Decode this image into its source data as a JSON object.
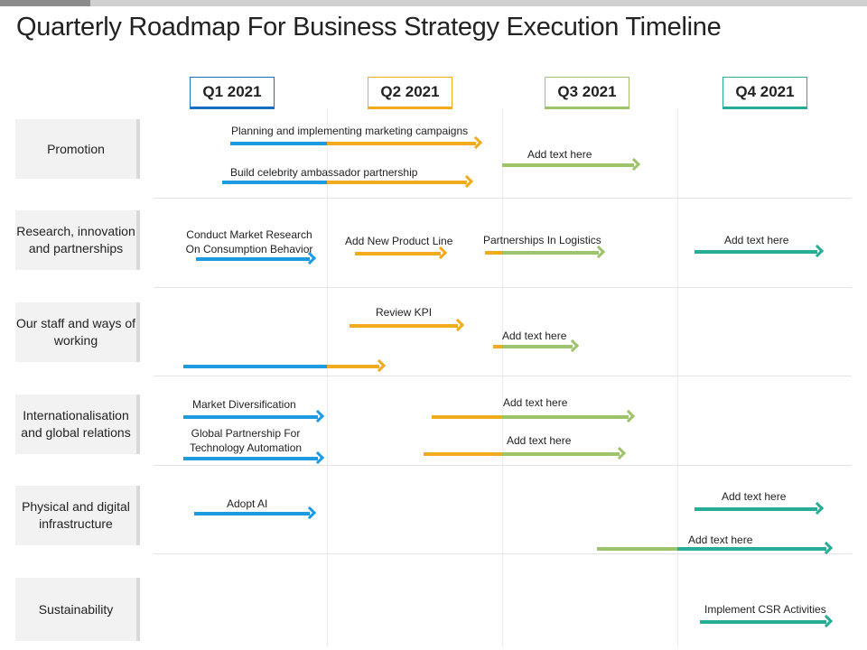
{
  "title": "Quarterly Roadmap For Business Strategy Execution Timeline",
  "colors": {
    "blue": "#1e9be0",
    "orange": "#f0ac1e",
    "lightgreen": "#9dc36b",
    "teal": "#27ad96",
    "headerbar": "#d0d0d0"
  },
  "quarters": [
    "Q1 2021",
    "Q2 2021",
    "Q3 2021",
    "Q4 2021"
  ],
  "quarter_colors": [
    "#1a6fc4",
    "#f0ac1e",
    "#9dc36b",
    "#27ad96"
  ],
  "rows": [
    "Promotion",
    "Research, innovation and partnerships",
    "Our staff and ways of working",
    "Internationalisation and global relations",
    "Physical and digital infrastructure",
    "Sustainability"
  ],
  "tasks": [
    {
      "label": "Planning and implementing marketing campaigns",
      "start": 0.45,
      "end": 1.85,
      "split": 1.0,
      "c1": "blue",
      "c2": "orange"
    },
    {
      "label": "Build celebrity ambassador partnership",
      "start": 0.4,
      "end": 1.8,
      "split": 1.0,
      "c1": "blue",
      "c2": "orange"
    },
    {
      "label": "Add text here",
      "start": 2.0,
      "end": 2.75,
      "c1": "lightgreen"
    },
    {
      "label": "Conduct Market Research On Consumption Behavior",
      "start": 0.25,
      "end": 0.9,
      "c1": "blue"
    },
    {
      "label": "Add New Product Line",
      "start": 1.16,
      "end": 1.65,
      "c1": "orange"
    },
    {
      "label": "Partnerships In Logistics",
      "start": 1.9,
      "end": 2.55,
      "split": 2.0,
      "c1": "orange",
      "c2": "lightgreen"
    },
    {
      "label": "Add text here",
      "start": 3.1,
      "end": 3.8,
      "c1": "teal"
    },
    {
      "label": "Review KPI",
      "start": 1.13,
      "end": 1.75,
      "c1": "orange"
    },
    {
      "label": "Add text here",
      "start": 1.95,
      "end": 2.4,
      "split": 2.0,
      "c1": "orange",
      "c2": "lightgreen"
    },
    {
      "label": "",
      "start": 0.18,
      "end": 1.3,
      "split": 1.0,
      "c1": "blue",
      "c2": "orange"
    },
    {
      "label": "Market Diversification",
      "start": 0.18,
      "end": 0.95,
      "c1": "blue"
    },
    {
      "label": "Add text here",
      "start": 1.6,
      "end": 2.72,
      "split": 2.0,
      "c1": "orange",
      "c2": "lightgreen"
    },
    {
      "label": "Global Partnership For Technology Automation",
      "start": 0.18,
      "end": 0.95,
      "c1": "blue"
    },
    {
      "label": "Add text here",
      "start": 1.55,
      "end": 2.67,
      "split": 2.0,
      "c1": "orange",
      "c2": "lightgreen"
    },
    {
      "label": "Adopt AI",
      "start": 0.24,
      "end": 0.9,
      "c1": "blue"
    },
    {
      "label": "Add text here",
      "start": 3.1,
      "end": 3.8,
      "c1": "teal"
    },
    {
      "label": "Add text here",
      "start": 2.54,
      "end": 3.85,
      "split": 3.0,
      "c1": "lightgreen",
      "c2": "teal"
    },
    {
      "label": "Implement CSR Activities",
      "start": 3.13,
      "end": 3.85,
      "c1": "teal"
    }
  ]
}
